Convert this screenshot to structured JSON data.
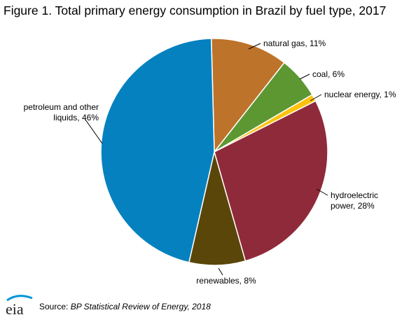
{
  "title": "Figure 1. Total primary energy consumption in Brazil by fuel type, 2017",
  "source_label": "Source:",
  "source_name": "BP Statistical Review of Energy, 2018",
  "logo_text": "eia",
  "chart_data": {
    "type": "pie",
    "title": "Figure 1. Total primary energy consumption in Brazil by fuel type, 2017",
    "slices": [
      {
        "name": "natural gas",
        "value": 11,
        "label_lines": [
          "natural gas,  11%"
        ],
        "color": "#BD732A"
      },
      {
        "name": "coal",
        "value": 6,
        "label_lines": [
          "coal, 6%"
        ],
        "color": "#5D9732"
      },
      {
        "name": "nuclear energy",
        "value": 1,
        "label_lines": [
          "nuclear energy, 1%"
        ],
        "color": "#FFC20E"
      },
      {
        "name": "hydroelectric power",
        "value": 28,
        "label_lines": [
          "hydroelectric",
          "power, 28%"
        ],
        "color": "#8F2A3A"
      },
      {
        "name": "renewables",
        "value": 8,
        "label_lines": [
          "renewables, 8%"
        ],
        "color": "#5A4608"
      },
      {
        "name": "petroleum and other liquids",
        "value": 46,
        "label_lines": [
          "petroleum and other",
          "liquids, 46%"
        ],
        "color": "#0581BF"
      }
    ]
  },
  "colors": {
    "leader_line": "#000000",
    "slice_border": "#ffffff",
    "logo_blue": "#0096D7"
  }
}
